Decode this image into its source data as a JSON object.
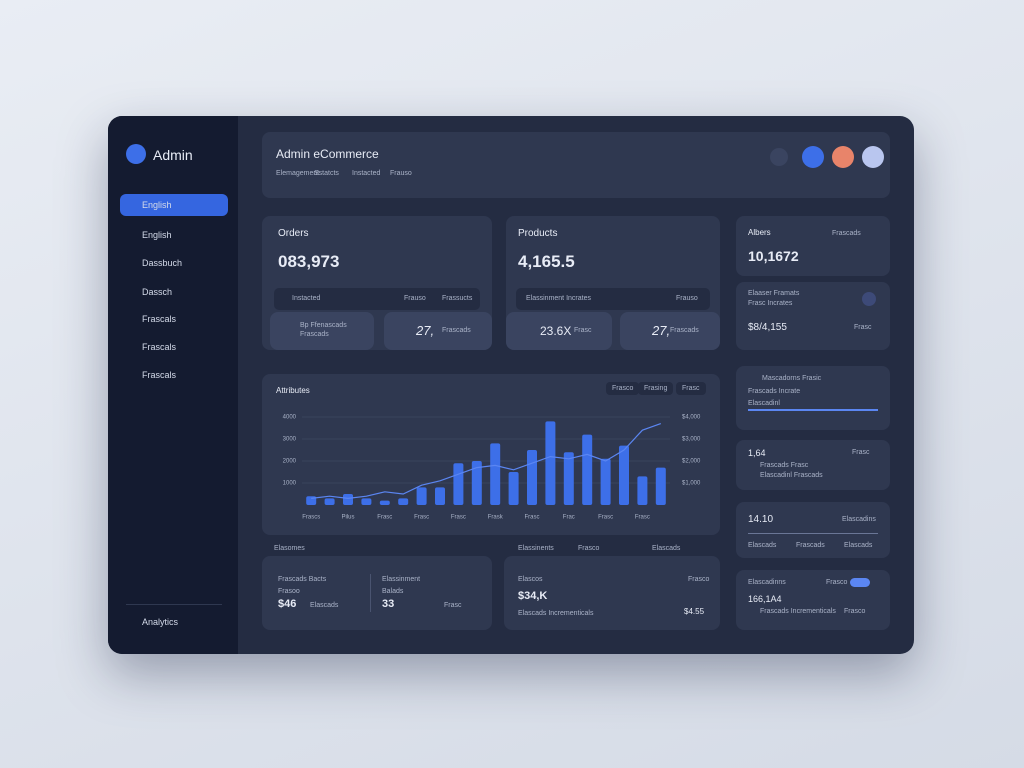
{
  "sidebar": {
    "brand": "Admin",
    "menu": [
      "English",
      "English",
      "Dassbuch",
      "Dassch",
      "Frascals",
      "Frascals",
      "Frascals"
    ],
    "footer": "Analytics"
  },
  "header": {
    "title": "Admin eCommerce",
    "breadcrumb": [
      "Elemagement",
      "Sstatcts",
      "Instacted",
      "Frauso"
    ]
  },
  "orders": {
    "title": "Orders",
    "value": "083,973",
    "bar": [
      "Instacted",
      "Frauso",
      "Frassucts"
    ],
    "tiles": [
      {
        "value": "Bp Ffenascads",
        "text": "Frascads"
      },
      {
        "value": "27,",
        "text": "Frascads"
      }
    ]
  },
  "products": {
    "title": "Products",
    "value": "4,165.5",
    "bar": [
      "Elassinment Incrates",
      "Frauso"
    ],
    "tiles": [
      {
        "value": "23.6X",
        "text": "Frasc"
      },
      {
        "value": "27,",
        "text": "Frascads"
      }
    ]
  },
  "chart_data": {
    "type": "bar",
    "title": "Attributes",
    "buttons": [
      "Frasco",
      "Frasing",
      "Frasc"
    ],
    "categories": [
      "Frascs",
      null,
      "Pilus",
      null,
      "Frasc",
      null,
      "Frasc",
      null,
      "Frasc",
      null,
      "Frask",
      null,
      "Frasc",
      null,
      "Frac",
      null,
      "Frasc",
      null,
      "Frasc",
      null
    ],
    "series": [
      {
        "color": "#3d6fe8",
        "values": [
          400,
          300,
          500,
          300,
          200,
          300,
          800,
          800,
          1900,
          2000,
          2800,
          1500,
          2500,
          3800,
          2400,
          3200,
          2100,
          2700,
          1300,
          1700
        ]
      },
      {
        "color": "#5b86f2",
        "values": [
          300,
          400,
          300,
          400,
          600,
          500,
          900,
          1100,
          1400,
          1700,
          1800,
          1600,
          1900,
          2200,
          2100,
          2300,
          2000,
          2500,
          3400,
          3700
        ]
      }
    ],
    "ylim": [
      0,
      4500
    ],
    "yticks": [
      1000,
      2000,
      3000,
      4000
    ],
    "y2lim": [
      0,
      4500
    ],
    "y2ticks": [
      {
        "value": 1000,
        "label": "$1,000"
      },
      {
        "value": 2000,
        "label": "$2,000"
      },
      {
        "value": 3000,
        "label": "$3,000"
      },
      {
        "value": 4000,
        "label": "$4,000"
      }
    ],
    "grid": true
  },
  "bottom_left": {
    "label": "Elasomes",
    "cols": [
      {
        "title": "Frascads Bacts",
        "sub": "Frasoo",
        "value": "$46",
        "note": "Elascads"
      },
      {
        "title": "Elassinment",
        "sub": "Balads",
        "value": "33",
        "note": "Frasc"
      }
    ]
  },
  "bottom_mid": {
    "labels": [
      "Elassinents",
      "Frasco",
      "Elascads"
    ],
    "title": "Elascos",
    "side": "Frasco",
    "value": "$34,K",
    "note": "Elascads Incrementicals",
    "amount": "$4.55"
  },
  "right": {
    "albers": {
      "title": "Albers",
      "value": "10,1672",
      "sub": "Frascads"
    },
    "detail": {
      "lines": [
        "Elaaser Framats",
        "Frasc Incrates"
      ],
      "value": "$8/4,155",
      "side": "Frasc"
    },
    "progress": {
      "title": "Mascadorns Frasic",
      "sub": "Frascads Incrate",
      "note": "Elascadinl"
    },
    "list": {
      "value": "1,64",
      "side": "Frasc",
      "rows": [
        "Frascads Frasc",
        "Elascadinl Frascads"
      ]
    },
    "range": {
      "value": "14.10",
      "side": "Elascadins",
      "labels": [
        "Elascads",
        "Frascads",
        "Elascads"
      ]
    },
    "footer": {
      "title": "Elascadinns",
      "side": "Frasco",
      "value": "166,1A4",
      "rows": [
        "Frascads Incrementicals",
        "Frasco"
      ]
    }
  }
}
